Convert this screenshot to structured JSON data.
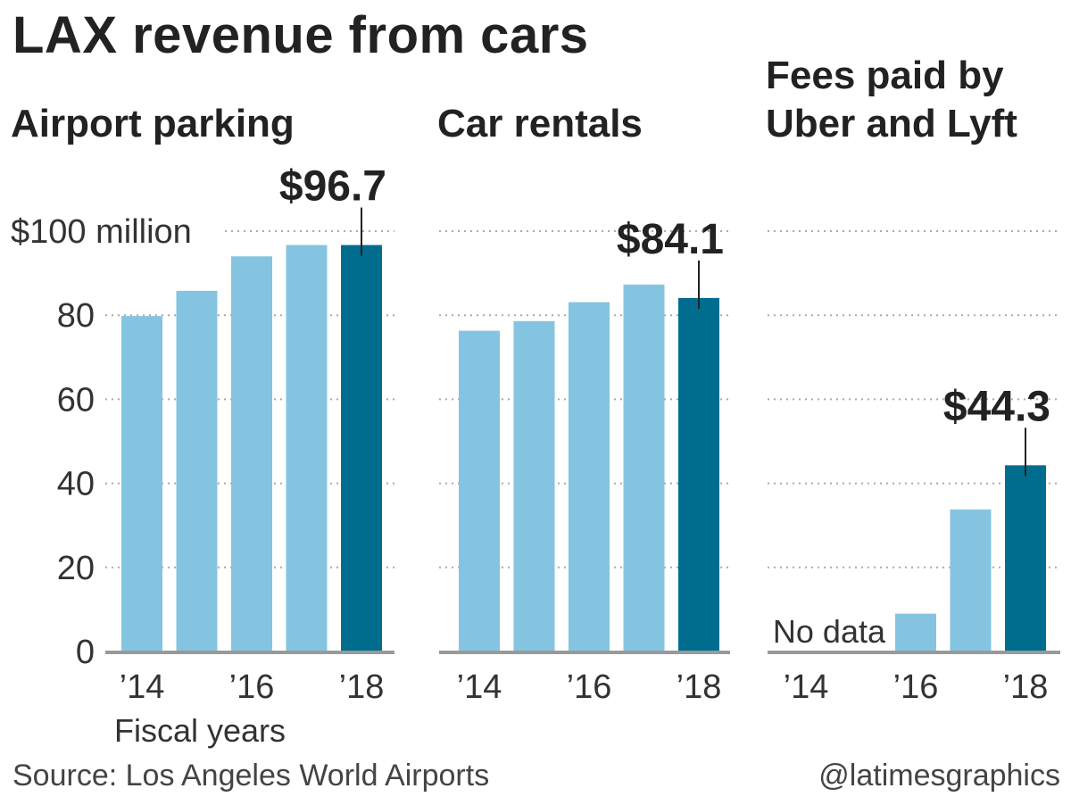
{
  "title": "LAX revenue from cars",
  "source": "Source: Los Angeles World Airports",
  "credit": "@latimesgraphics",
  "x_axis_label": "Fiscal years",
  "y_axis": {
    "ticks": [
      0,
      20,
      40,
      60,
      80,
      100
    ],
    "top_tick_label": "$100 million"
  },
  "colors": {
    "bar": "#85c4e0",
    "highlight": "#006d8f",
    "axis": "#999999",
    "grid": "#aaaaaa",
    "text": "#222222"
  },
  "chart_data": [
    {
      "type": "bar",
      "title": "Airport parking",
      "categories": [
        "'14",
        "'15",
        "'16",
        "'17",
        "'18"
      ],
      "tick_labels": [
        "’14",
        "",
        "’16",
        "",
        "’18"
      ],
      "values": [
        79.8,
        85.8,
        94.0,
        96.7,
        96.7
      ],
      "highlight_index": 4,
      "highlight_label": "$96.7",
      "ylabel": "$100 million",
      "xlabel": "Fiscal years",
      "ylim": [
        0,
        100
      ]
    },
    {
      "type": "bar",
      "title": "Car rentals",
      "categories": [
        "'14",
        "'15",
        "'16",
        "'17",
        "'18"
      ],
      "tick_labels": [
        "’14",
        "",
        "’16",
        "",
        "’18"
      ],
      "values": [
        76.3,
        78.6,
        83.1,
        87.3,
        84.1
      ],
      "highlight_index": 4,
      "highlight_label": "$84.1",
      "ylim": [
        0,
        100
      ]
    },
    {
      "type": "bar",
      "title": "Fees paid by Uber and Lyft",
      "title_lines": [
        "Fees paid by",
        "Uber and Lyft"
      ],
      "categories": [
        "'14",
        "'15",
        "'16",
        "'17",
        "'18"
      ],
      "tick_labels": [
        "’14",
        "",
        "’16",
        "",
        "’18"
      ],
      "values": [
        null,
        null,
        9.0,
        33.8,
        44.3
      ],
      "highlight_index": 4,
      "highlight_label": "$44.3",
      "annotation": "No data",
      "ylim": [
        0,
        100
      ]
    }
  ]
}
